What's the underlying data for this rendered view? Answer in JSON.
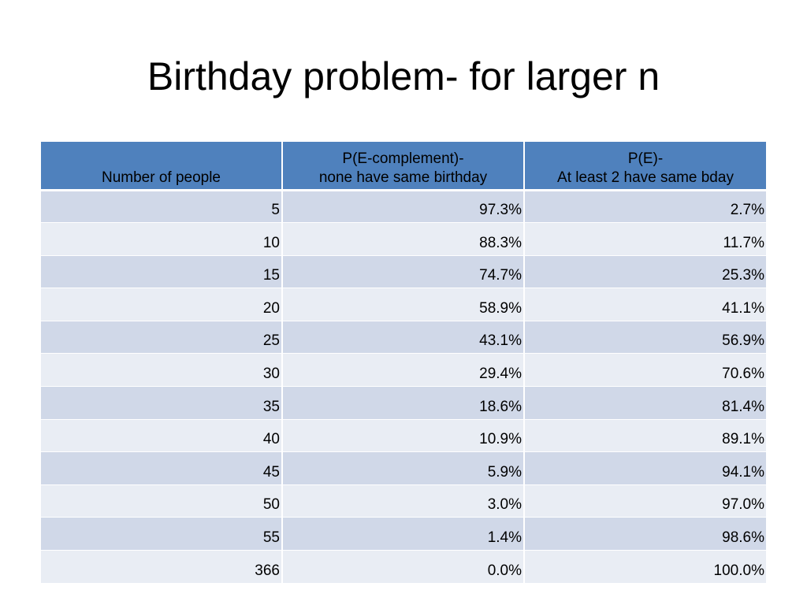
{
  "slide": {
    "title": "Birthday problem- for larger n"
  },
  "table": {
    "headers": [
      [
        "",
        "Number of people"
      ],
      [
        "P(E-complement)-",
        "none have same birthday"
      ],
      [
        "P(E)-",
        "At least 2 have same bday"
      ]
    ],
    "rows": [
      [
        "5",
        "97.3%",
        "2.7%"
      ],
      [
        "10",
        "88.3%",
        "11.7%"
      ],
      [
        "15",
        "74.7%",
        "25.3%"
      ],
      [
        "20",
        "58.9%",
        "41.1%"
      ],
      [
        "25",
        "43.1%",
        "56.9%"
      ],
      [
        "30",
        "29.4%",
        "70.6%"
      ],
      [
        "35",
        "18.6%",
        "81.4%"
      ],
      [
        "40",
        "10.9%",
        "89.1%"
      ],
      [
        "45",
        "5.9%",
        "94.1%"
      ],
      [
        "50",
        "3.0%",
        "97.0%"
      ],
      [
        "55",
        "1.4%",
        "98.6%"
      ],
      [
        "366",
        "0.0%",
        "100.0%"
      ]
    ]
  },
  "colors": {
    "header_bg": "#4f81bd",
    "row_odd_bg": "#d0d8e8",
    "row_even_bg": "#e9edf4"
  }
}
